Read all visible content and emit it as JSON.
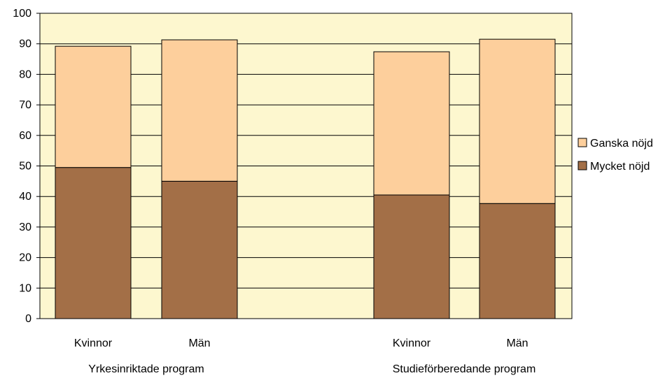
{
  "chart_data": {
    "type": "bar",
    "stacked": true,
    "groups": [
      "Yrkesinriktade program",
      "Studieförberedande program"
    ],
    "categories": [
      "Kvinnor",
      "Män",
      "Kvinnor",
      "Män"
    ],
    "series": [
      {
        "name": "Mycket nöjd",
        "values": [
          49.5,
          45.0,
          40.5,
          37.7
        ],
        "color": "#a36f47"
      },
      {
        "name": "Ganska nöjd",
        "values": [
          39.7,
          46.3,
          46.9,
          53.8
        ],
        "color": "#fdcf9c"
      }
    ],
    "y_ticks": [
      "0",
      "10",
      "20",
      "30",
      "40",
      "50",
      "60",
      "70",
      "80",
      "90",
      "100"
    ],
    "ylim": [
      0,
      100
    ],
    "grid": true,
    "legend_position": "right",
    "plot_background": "#fdf7cf",
    "title": "",
    "xlabel": "",
    "ylabel": ""
  }
}
